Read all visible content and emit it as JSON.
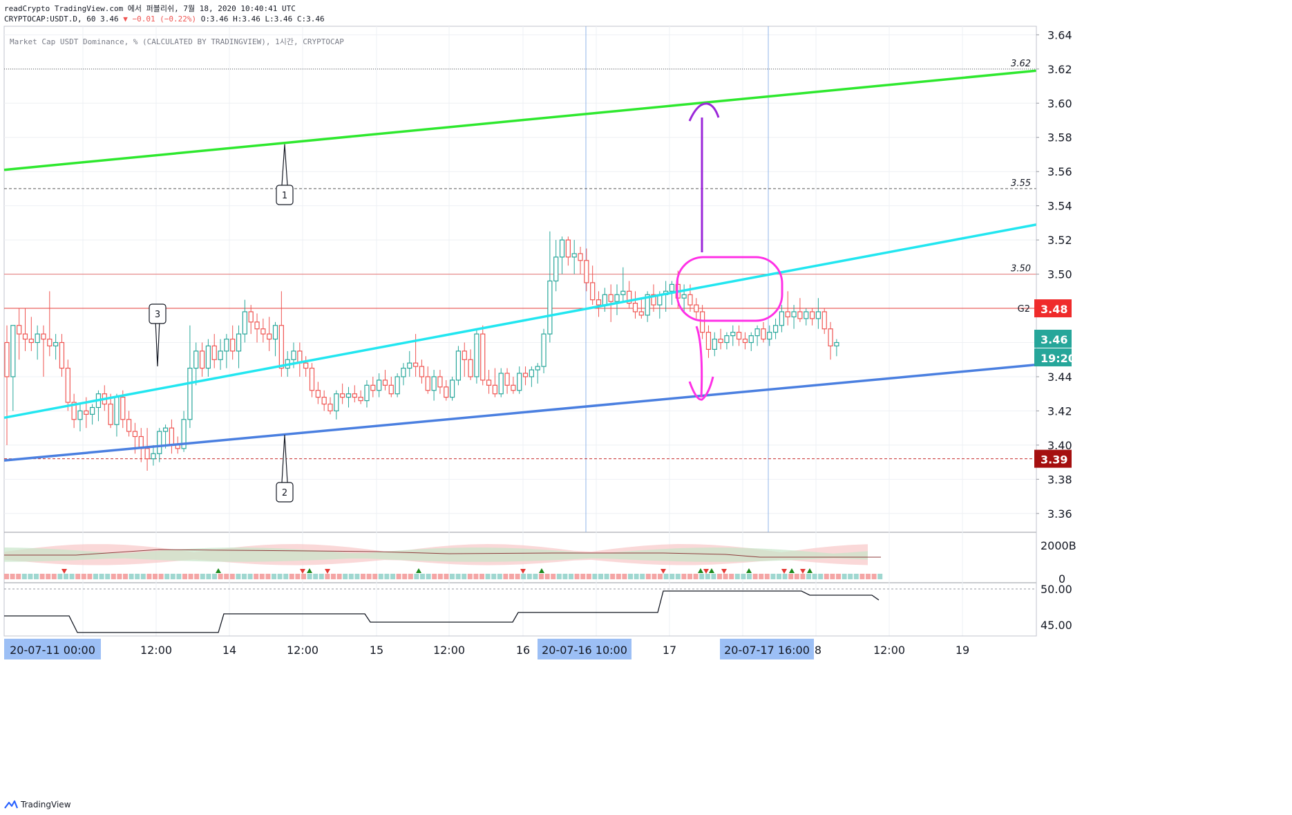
{
  "header": {
    "line1": "readCrypto TradingView.com 에서 퍼블리쉬, 7월 18, 2020 10:40:41 UTC",
    "symbol": "CRYPTOCAP:USDT.D, 60 3.46",
    "change": "▼ −0.01 (−0.22%)",
    "ohlc": "O:3.46 H:3.46 L:3.46 C:3.46"
  },
  "legend": "Market Cap USDT Dominance, % (CALCULATED BY TRADINGVIEW), 1시간, CRYPTOCAP",
  "footer": {
    "brand": "TradingView"
  },
  "colors": {
    "up": "#26a69a",
    "down": "#ef5350",
    "green_line": "#2ee82e",
    "cyan_line": "#22e6f0",
    "blue_line": "#4a7fe0",
    "magenta": "#ff30e6",
    "purple": "#9b27d9"
  },
  "chart_data": {
    "type": "candlestick",
    "price_axis": {
      "ticks": [
        3.64,
        3.62,
        3.6,
        3.58,
        3.56,
        3.54,
        3.52,
        3.5,
        3.48,
        3.46,
        3.44,
        3.42,
        3.4,
        3.38,
        3.36
      ],
      "range": [
        3.349,
        3.645
      ]
    },
    "price_labels": {
      "current": "3.46",
      "countdown": "19:20",
      "g2_price": "3.48",
      "g2_label": "G2",
      "low_level": "3.39"
    },
    "horizontal_levels": [
      {
        "price": 3.62,
        "label": "3.62",
        "style": "dotted",
        "color": "#555555"
      },
      {
        "price": 3.55,
        "label": "3.55",
        "style": "dashed",
        "color": "#555555"
      },
      {
        "price": 3.5,
        "label": "3.50",
        "style": "solid",
        "color": "#e57373"
      },
      {
        "price": 3.48,
        "label": "",
        "style": "solid",
        "color": "#e53935"
      },
      {
        "price": 3.392,
        "label": "",
        "style": "dashed",
        "color": "#c62828"
      }
    ],
    "trend_lines": [
      {
        "name": "upper",
        "color": "green",
        "from": [
          "20-07-11 00:00",
          3.561
        ],
        "to": [
          "20-07-19 02:00",
          3.619
        ]
      },
      {
        "name": "middle",
        "color": "cyan",
        "from": [
          "20-07-11 00:00",
          3.416
        ],
        "to": [
          "20-07-19 02:00",
          3.529
        ]
      },
      {
        "name": "lower",
        "color": "blue",
        "from": [
          "20-07-11 00:00",
          3.391
        ],
        "to": [
          "20-07-19 02:00",
          3.447
        ]
      }
    ],
    "callouts": [
      "1",
      "2",
      "3"
    ],
    "x_axis": {
      "ticks": [
        "12:00",
        "14",
        "12:00",
        "15",
        "12:00",
        "16",
        "17",
        "8",
        "12:00",
        "19"
      ],
      "highlights": [
        "20-07-11   00:00",
        "20-07-16   10:00",
        "20-07-17   16:00"
      ]
    },
    "candles": [
      {
        "o": 3.46,
        "h": 3.47,
        "l": 3.4,
        "c": 3.44
      },
      {
        "o": 3.44,
        "h": 3.47,
        "l": 3.42,
        "c": 3.47
      },
      {
        "o": 3.47,
        "h": 3.48,
        "l": 3.45,
        "c": 3.465
      },
      {
        "o": 3.465,
        "h": 3.48,
        "l": 3.455,
        "c": 3.462
      },
      {
        "o": 3.462,
        "h": 3.475,
        "l": 3.455,
        "c": 3.46
      },
      {
        "o": 3.46,
        "h": 3.47,
        "l": 3.45,
        "c": 3.465
      },
      {
        "o": 3.465,
        "h": 3.47,
        "l": 3.44,
        "c": 3.462
      },
      {
        "o": 3.462,
        "h": 3.49,
        "l": 3.452,
        "c": 3.458
      },
      {
        "o": 3.458,
        "h": 3.465,
        "l": 3.45,
        "c": 3.46
      },
      {
        "o": 3.46,
        "h": 3.465,
        "l": 3.44,
        "c": 3.445
      },
      {
        "o": 3.445,
        "h": 3.45,
        "l": 3.42,
        "c": 3.425
      },
      {
        "o": 3.425,
        "h": 3.43,
        "l": 3.41,
        "c": 3.415
      },
      {
        "o": 3.415,
        "h": 3.425,
        "l": 3.408,
        "c": 3.42
      },
      {
        "o": 3.42,
        "h": 3.428,
        "l": 3.41,
        "c": 3.418
      },
      {
        "o": 3.418,
        "h": 3.424,
        "l": 3.412,
        "c": 3.422
      },
      {
        "o": 3.422,
        "h": 3.432,
        "l": 3.414,
        "c": 3.43
      },
      {
        "o": 3.43,
        "h": 3.435,
        "l": 3.42,
        "c": 3.424
      },
      {
        "o": 3.424,
        "h": 3.43,
        "l": 3.41,
        "c": 3.412
      },
      {
        "o": 3.412,
        "h": 3.43,
        "l": 3.405,
        "c": 3.428
      },
      {
        "o": 3.428,
        "h": 3.432,
        "l": 3.41,
        "c": 3.415
      },
      {
        "o": 3.415,
        "h": 3.42,
        "l": 3.405,
        "c": 3.408
      },
      {
        "o": 3.408,
        "h": 3.413,
        "l": 3.395,
        "c": 3.405
      },
      {
        "o": 3.405,
        "h": 3.41,
        "l": 3.39,
        "c": 3.398
      },
      {
        "o": 3.398,
        "h": 3.41,
        "l": 3.385,
        "c": 3.392
      },
      {
        "o": 3.392,
        "h": 3.4,
        "l": 3.388,
        "c": 3.395
      },
      {
        "o": 3.395,
        "h": 3.41,
        "l": 3.39,
        "c": 3.408
      },
      {
        "o": 3.408,
        "h": 3.412,
        "l": 3.398,
        "c": 3.41
      },
      {
        "o": 3.41,
        "h": 3.415,
        "l": 3.395,
        "c": 3.4
      },
      {
        "o": 3.4,
        "h": 3.405,
        "l": 3.395,
        "c": 3.398
      },
      {
        "o": 3.398,
        "h": 3.42,
        "l": 3.396,
        "c": 3.415
      },
      {
        "o": 3.415,
        "h": 3.47,
        "l": 3.41,
        "c": 3.445
      },
      {
        "o": 3.445,
        "h": 3.46,
        "l": 3.435,
        "c": 3.455
      },
      {
        "o": 3.455,
        "h": 3.46,
        "l": 3.44,
        "c": 3.445
      },
      {
        "o": 3.445,
        "h": 3.462,
        "l": 3.44,
        "c": 3.458
      },
      {
        "o": 3.458,
        "h": 3.465,
        "l": 3.445,
        "c": 3.45
      },
      {
        "o": 3.45,
        "h": 3.462,
        "l": 3.444,
        "c": 3.455
      },
      {
        "o": 3.455,
        "h": 3.465,
        "l": 3.445,
        "c": 3.462
      },
      {
        "o": 3.462,
        "h": 3.47,
        "l": 3.45,
        "c": 3.455
      },
      {
        "o": 3.455,
        "h": 3.47,
        "l": 3.445,
        "c": 3.465
      },
      {
        "o": 3.465,
        "h": 3.485,
        "l": 3.46,
        "c": 3.478
      },
      {
        "o": 3.478,
        "h": 3.482,
        "l": 3.465,
        "c": 3.472
      },
      {
        "o": 3.472,
        "h": 3.477,
        "l": 3.46,
        "c": 3.468
      },
      {
        "o": 3.468,
        "h": 3.474,
        "l": 3.46,
        "c": 3.465
      },
      {
        "o": 3.465,
        "h": 3.475,
        "l": 3.455,
        "c": 3.462
      },
      {
        "o": 3.462,
        "h": 3.472,
        "l": 3.452,
        "c": 3.47
      },
      {
        "o": 3.47,
        "h": 3.49,
        "l": 3.44,
        "c": 3.445
      },
      {
        "o": 3.445,
        "h": 3.455,
        "l": 3.44,
        "c": 3.45
      },
      {
        "o": 3.45,
        "h": 3.46,
        "l": 3.445,
        "c": 3.455
      },
      {
        "o": 3.455,
        "h": 3.46,
        "l": 3.44,
        "c": 3.448
      },
      {
        "o": 3.448,
        "h": 3.452,
        "l": 3.44,
        "c": 3.445
      },
      {
        "o": 3.445,
        "h": 3.448,
        "l": 3.428,
        "c": 3.432
      },
      {
        "o": 3.432,
        "h": 3.437,
        "l": 3.424,
        "c": 3.428
      },
      {
        "o": 3.428,
        "h": 3.432,
        "l": 3.42,
        "c": 3.424
      },
      {
        "o": 3.424,
        "h": 3.428,
        "l": 3.418,
        "c": 3.42
      },
      {
        "o": 3.42,
        "h": 3.432,
        "l": 3.415,
        "c": 3.43
      },
      {
        "o": 3.43,
        "h": 3.436,
        "l": 3.424,
        "c": 3.428
      },
      {
        "o": 3.428,
        "h": 3.434,
        "l": 3.422,
        "c": 3.43
      },
      {
        "o": 3.43,
        "h": 3.435,
        "l": 3.425,
        "c": 3.428
      },
      {
        "o": 3.428,
        "h": 3.432,
        "l": 3.424,
        "c": 3.426
      },
      {
        "o": 3.426,
        "h": 3.438,
        "l": 3.422,
        "c": 3.435
      },
      {
        "o": 3.435,
        "h": 3.44,
        "l": 3.428,
        "c": 3.432
      },
      {
        "o": 3.432,
        "h": 3.442,
        "l": 3.428,
        "c": 3.438
      },
      {
        "o": 3.438,
        "h": 3.444,
        "l": 3.432,
        "c": 3.435
      },
      {
        "o": 3.435,
        "h": 3.44,
        "l": 3.428,
        "c": 3.43
      },
      {
        "o": 3.43,
        "h": 3.442,
        "l": 3.428,
        "c": 3.44
      },
      {
        "o": 3.44,
        "h": 3.448,
        "l": 3.435,
        "c": 3.445
      },
      {
        "o": 3.445,
        "h": 3.455,
        "l": 3.44,
        "c": 3.448
      },
      {
        "o": 3.448,
        "h": 3.465,
        "l": 3.44,
        "c": 3.446
      },
      {
        "o": 3.446,
        "h": 3.45,
        "l": 3.436,
        "c": 3.44
      },
      {
        "o": 3.44,
        "h": 3.446,
        "l": 3.43,
        "c": 3.432
      },
      {
        "o": 3.432,
        "h": 3.444,
        "l": 3.426,
        "c": 3.44
      },
      {
        "o": 3.44,
        "h": 3.444,
        "l": 3.43,
        "c": 3.434
      },
      {
        "o": 3.434,
        "h": 3.438,
        "l": 3.426,
        "c": 3.428
      },
      {
        "o": 3.428,
        "h": 3.44,
        "l": 3.426,
        "c": 3.438
      },
      {
        "o": 3.438,
        "h": 3.458,
        "l": 3.435,
        "c": 3.455
      },
      {
        "o": 3.455,
        "h": 3.46,
        "l": 3.44,
        "c": 3.45
      },
      {
        "o": 3.45,
        "h": 3.456,
        "l": 3.438,
        "c": 3.44
      },
      {
        "o": 3.44,
        "h": 3.468,
        "l": 3.436,
        "c": 3.465
      },
      {
        "o": 3.465,
        "h": 3.47,
        "l": 3.435,
        "c": 3.438
      },
      {
        "o": 3.438,
        "h": 3.444,
        "l": 3.43,
        "c": 3.435
      },
      {
        "o": 3.435,
        "h": 3.445,
        "l": 3.428,
        "c": 3.43
      },
      {
        "o": 3.43,
        "h": 3.445,
        "l": 3.428,
        "c": 3.442
      },
      {
        "o": 3.442,
        "h": 3.445,
        "l": 3.43,
        "c": 3.435
      },
      {
        "o": 3.435,
        "h": 3.44,
        "l": 3.43,
        "c": 3.432
      },
      {
        "o": 3.432,
        "h": 3.446,
        "l": 3.43,
        "c": 3.442
      },
      {
        "o": 3.442,
        "h": 3.446,
        "l": 3.435,
        "c": 3.44
      },
      {
        "o": 3.44,
        "h": 3.446,
        "l": 3.434,
        "c": 3.444
      },
      {
        "o": 3.444,
        "h": 3.448,
        "l": 3.436,
        "c": 3.446
      },
      {
        "o": 3.446,
        "h": 3.468,
        "l": 3.442,
        "c": 3.465
      },
      {
        "o": 3.465,
        "h": 3.525,
        "l": 3.46,
        "c": 3.496
      },
      {
        "o": 3.496,
        "h": 3.52,
        "l": 3.49,
        "c": 3.51
      },
      {
        "o": 3.51,
        "h": 3.522,
        "l": 3.5,
        "c": 3.52
      },
      {
        "o": 3.52,
        "h": 3.522,
        "l": 3.505,
        "c": 3.51
      },
      {
        "o": 3.51,
        "h": 3.52,
        "l": 3.5,
        "c": 3.512
      },
      {
        "o": 3.512,
        "h": 3.516,
        "l": 3.5,
        "c": 3.508
      },
      {
        "o": 3.508,
        "h": 3.515,
        "l": 3.49,
        "c": 3.495
      },
      {
        "o": 3.495,
        "h": 3.505,
        "l": 3.482,
        "c": 3.485
      },
      {
        "o": 3.485,
        "h": 3.49,
        "l": 3.475,
        "c": 3.482
      },
      {
        "o": 3.482,
        "h": 3.492,
        "l": 3.478,
        "c": 3.488
      },
      {
        "o": 3.488,
        "h": 3.494,
        "l": 3.472,
        "c": 3.484
      },
      {
        "o": 3.484,
        "h": 3.494,
        "l": 3.476,
        "c": 3.488
      },
      {
        "o": 3.488,
        "h": 3.504,
        "l": 3.484,
        "c": 3.49
      },
      {
        "o": 3.49,
        "h": 3.496,
        "l": 3.48,
        "c": 3.483
      },
      {
        "o": 3.483,
        "h": 3.49,
        "l": 3.474,
        "c": 3.478
      },
      {
        "o": 3.478,
        "h": 3.486,
        "l": 3.474,
        "c": 3.476
      },
      {
        "o": 3.476,
        "h": 3.49,
        "l": 3.472,
        "c": 3.488
      },
      {
        "o": 3.488,
        "h": 3.494,
        "l": 3.478,
        "c": 3.482
      },
      {
        "o": 3.482,
        "h": 3.49,
        "l": 3.474,
        "c": 3.488
      },
      {
        "o": 3.488,
        "h": 3.496,
        "l": 3.478,
        "c": 3.49
      },
      {
        "o": 3.49,
        "h": 3.496,
        "l": 3.482,
        "c": 3.494
      },
      {
        "o": 3.494,
        "h": 3.502,
        "l": 3.48,
        "c": 3.486
      },
      {
        "o": 3.486,
        "h": 3.494,
        "l": 3.478,
        "c": 3.488
      },
      {
        "o": 3.488,
        "h": 3.494,
        "l": 3.478,
        "c": 3.482
      },
      {
        "o": 3.482,
        "h": 3.486,
        "l": 3.474,
        "c": 3.478
      },
      {
        "o": 3.478,
        "h": 3.482,
        "l": 3.462,
        "c": 3.466
      },
      {
        "o": 3.466,
        "h": 3.47,
        "l": 3.451,
        "c": 3.456
      },
      {
        "o": 3.456,
        "h": 3.466,
        "l": 3.452,
        "c": 3.462
      },
      {
        "o": 3.462,
        "h": 3.468,
        "l": 3.456,
        "c": 3.46
      },
      {
        "o": 3.46,
        "h": 3.466,
        "l": 3.456,
        "c": 3.464
      },
      {
        "o": 3.464,
        "h": 3.47,
        "l": 3.458,
        "c": 3.466
      },
      {
        "o": 3.466,
        "h": 3.47,
        "l": 3.458,
        "c": 3.462
      },
      {
        "o": 3.462,
        "h": 3.466,
        "l": 3.456,
        "c": 3.46
      },
      {
        "o": 3.46,
        "h": 3.466,
        "l": 3.455,
        "c": 3.464
      },
      {
        "o": 3.464,
        "h": 3.47,
        "l": 3.458,
        "c": 3.468
      },
      {
        "o": 3.468,
        "h": 3.472,
        "l": 3.46,
        "c": 3.462
      },
      {
        "o": 3.462,
        "h": 3.47,
        "l": 3.458,
        "c": 3.466
      },
      {
        "o": 3.466,
        "h": 3.474,
        "l": 3.462,
        "c": 3.47
      },
      {
        "o": 3.47,
        "h": 3.482,
        "l": 3.466,
        "c": 3.478
      },
      {
        "o": 3.478,
        "h": 3.49,
        "l": 3.47,
        "c": 3.475
      },
      {
        "o": 3.475,
        "h": 3.482,
        "l": 3.468,
        "c": 3.478
      },
      {
        "o": 3.478,
        "h": 3.486,
        "l": 3.472,
        "c": 3.474
      },
      {
        "o": 3.474,
        "h": 3.48,
        "l": 3.47,
        "c": 3.478
      },
      {
        "o": 3.478,
        "h": 3.48,
        "l": 3.47,
        "c": 3.474
      },
      {
        "o": 3.474,
        "h": 3.486,
        "l": 3.468,
        "c": 3.478
      },
      {
        "o": 3.478,
        "h": 3.48,
        "l": 3.465,
        "c": 3.468
      },
      {
        "o": 3.468,
        "h": 3.472,
        "l": 3.45,
        "c": 3.458
      },
      {
        "o": 3.458,
        "h": 3.462,
        "l": 3.452,
        "c": 3.46
      }
    ],
    "volume_pane": {
      "axis_labels": [
        "2000B",
        "0"
      ]
    },
    "lower_pane": {
      "axis_labels": [
        "50.00",
        "45.00"
      ],
      "steps": [
        46,
        44,
        46,
        45,
        45,
        46,
        50,
        49
      ]
    }
  }
}
